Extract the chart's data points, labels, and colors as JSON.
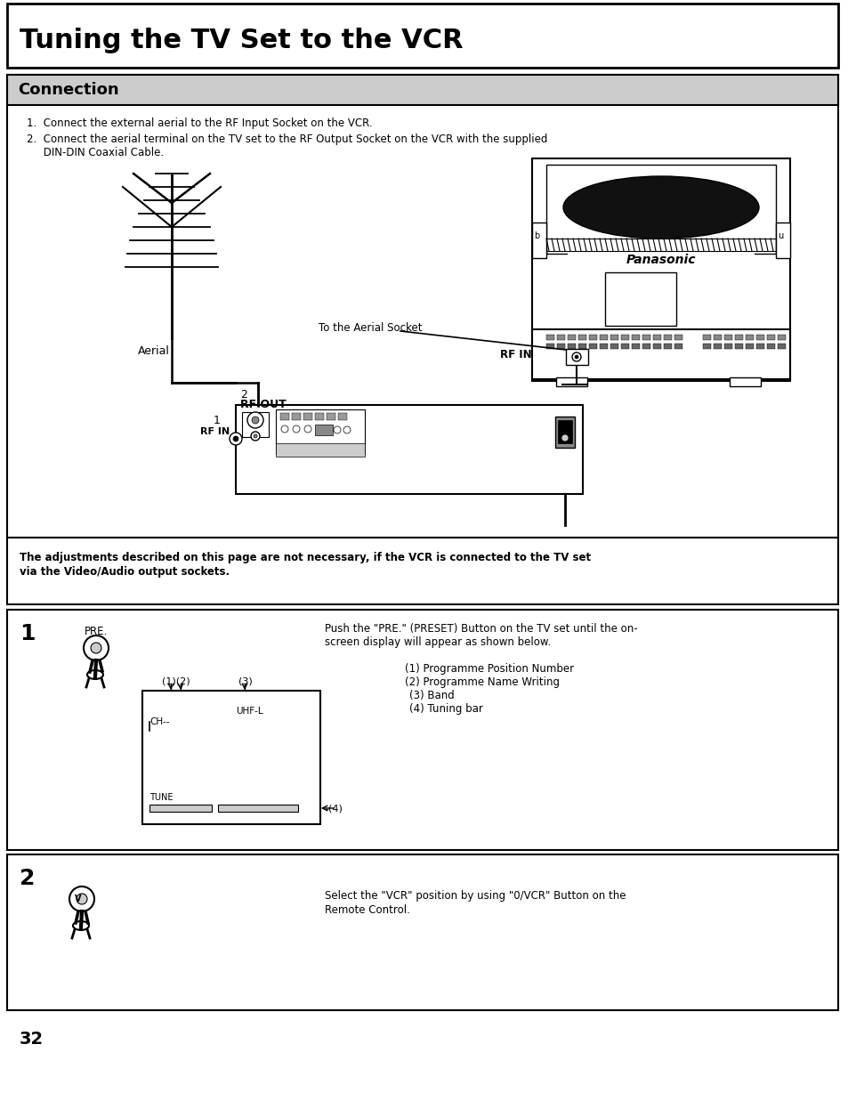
{
  "title": "Tuning the TV Set to the VCR",
  "section1_title": "Connection",
  "instr1": "1.  Connect the external aerial to the RF Input Socket on the VCR.",
  "instr2a": "2.  Connect the aerial terminal on the TV set to the RF Output Socket on the VCR with the supplied",
  "instr2b": "     DIN-DIN Coaxial Cable.",
  "warning_line1": "The adjustments described on this page are not necessary, if the VCR is connected to the TV set",
  "warning_line2": "via the Video/Audio output sockets.",
  "step1_num": "1",
  "pre_label": "PRE.",
  "step1_text1": "Push the \"PRE.\" (PRESET) Button on the TV set until the on-",
  "step1_text2": "screen display will appear as shown below.",
  "item1": "(1) Programme Position Number",
  "item2": "(2) Programme Name Writing",
  "item3": "(3) Band",
  "item4": "(4) Tuning bar",
  "step2_num": "2",
  "step2_text1": "Select the \"VCR\" position by using \"0/VCR\" Button on the",
  "step2_text2": "Remote Control.",
  "page_num": "32",
  "aerial_label": "Aerial",
  "to_aerial_txt": "To the Aerial Socket",
  "rf_in_tv": "RF IN",
  "rf_in_vcr": "RF IN",
  "rf_out_vcr": "RF OUT",
  "num1": "1",
  "num2": "2",
  "ch_txt": "CH--",
  "uhf_txt": "UHF-L",
  "tune_txt": "TUNE",
  "lbl12": "(1)(2)",
  "lbl3": "(3)",
  "lbl4": "-(4)",
  "panasonic_txt": "Panasonic",
  "bg": "#ffffff",
  "black": "#000000",
  "gray_light": "#cccccc",
  "gray_mid": "#888888",
  "gray_dark": "#444444",
  "header_bg": "#c8c8c8"
}
